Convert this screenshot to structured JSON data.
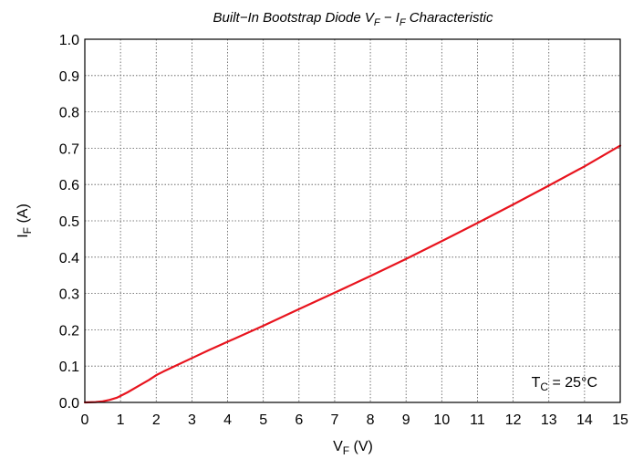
{
  "chart_data": {
    "type": "line",
    "title": {
      "part1": "Built−In Bootstrap Diode V",
      "sub1": "F",
      "part2": " − I",
      "sub2": "F",
      "part3": " Characteristic"
    },
    "xlabel": {
      "main": "V",
      "sub": "F",
      "tail": " (V)"
    },
    "ylabel": {
      "main": "I",
      "sub": "F",
      "tail": " (A)"
    },
    "xlim": [
      0,
      15
    ],
    "ylim": [
      0,
      1.0
    ],
    "xticks": [
      "0",
      "1",
      "2",
      "3",
      "4",
      "5",
      "6",
      "7",
      "8",
      "9",
      "10",
      "11",
      "12",
      "13",
      "14",
      "15"
    ],
    "yticks": [
      "0.0",
      "0.1",
      "0.2",
      "0.3",
      "0.4",
      "0.5",
      "0.6",
      "0.7",
      "0.8",
      "0.9",
      "1.0"
    ],
    "grid": true,
    "series": [
      {
        "color": "#e8141e",
        "x": [
          0,
          0.3,
          0.5,
          0.7,
          0.9,
          1.0,
          1.2,
          1.5,
          1.8,
          2.0,
          2.2,
          2.5,
          3.0,
          3.5,
          4.0,
          5.0,
          6.0,
          7.0,
          8.0,
          9.0,
          10.0,
          11.0,
          12.0,
          13.0,
          14.0,
          15.0
        ],
        "y": [
          0,
          0.001,
          0.003,
          0.007,
          0.013,
          0.018,
          0.028,
          0.045,
          0.062,
          0.075,
          0.085,
          0.099,
          0.122,
          0.145,
          0.167,
          0.211,
          0.257,
          0.302,
          0.348,
          0.395,
          0.444,
          0.494,
          0.545,
          0.597,
          0.65,
          0.707
        ]
      }
    ],
    "annotation": {
      "main": "T",
      "sub": "C",
      "tail": " = 25°C"
    }
  }
}
